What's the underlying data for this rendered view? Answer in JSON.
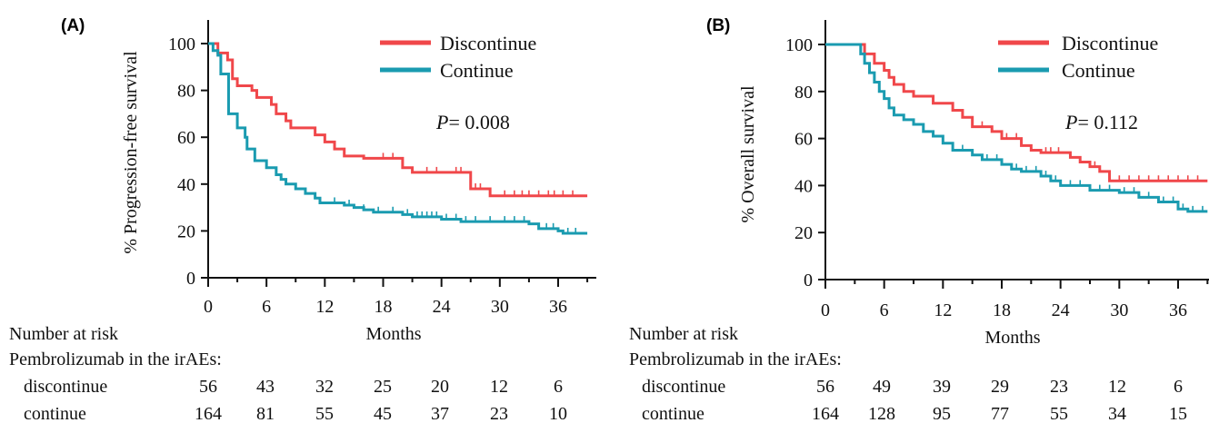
{
  "chart_data": [
    {
      "type": "line",
      "panel_label": "(A)",
      "title": "",
      "ylabel": "% Progression-free survival",
      "xlabel": "Months",
      "xlim": [
        0,
        39
      ],
      "ylim": [
        0,
        110
      ],
      "xticks": [
        "0",
        "6",
        "12",
        "18",
        "24",
        "30",
        "36"
      ],
      "yticks": [
        "0",
        "20",
        "40",
        "60",
        "80",
        "100"
      ],
      "grid": false,
      "legend_position": "top-right",
      "annotation": {
        "p_label": "P",
        "p_value": "= 0.008"
      },
      "series": [
        {
          "name": "Discontinue",
          "color": "#f0474a",
          "points": [
            [
              0,
              100
            ],
            [
              1,
              96
            ],
            [
              2,
              93
            ],
            [
              2.5,
              85
            ],
            [
              3,
              82
            ],
            [
              4.5,
              80
            ],
            [
              5,
              77
            ],
            [
              6.5,
              74
            ],
            [
              7,
              70
            ],
            [
              8,
              67
            ],
            [
              8.5,
              64
            ],
            [
              11,
              61
            ],
            [
              12,
              58
            ],
            [
              13,
              55
            ],
            [
              14,
              52
            ],
            [
              16,
              51
            ],
            [
              20,
              47
            ],
            [
              21,
              45
            ],
            [
              26,
              45
            ],
            [
              27,
              38
            ],
            [
              28.8,
              38
            ],
            [
              29,
              35
            ],
            [
              39,
              35
            ]
          ],
          "censor_x": [
            18,
            19,
            22.5,
            23.5,
            25.5,
            26,
            27.5,
            28,
            30.5,
            31.5,
            32.3,
            33,
            34,
            35,
            35.6,
            36.5,
            37.5
          ]
        },
        {
          "name": "Continue",
          "color": "#1a9bb0",
          "points": [
            [
              0,
              100
            ],
            [
              0.5,
              97
            ],
            [
              1,
              95
            ],
            [
              1.3,
              87
            ],
            [
              2,
              87
            ],
            [
              2.1,
              70
            ],
            [
              3,
              64
            ],
            [
              3.8,
              60
            ],
            [
              4,
              55
            ],
            [
              4.8,
              50
            ],
            [
              6,
              47
            ],
            [
              7,
              44
            ],
            [
              7.5,
              42
            ],
            [
              8,
              40
            ],
            [
              9,
              38
            ],
            [
              10,
              36
            ],
            [
              11,
              34
            ],
            [
              11.5,
              32
            ],
            [
              14,
              31
            ],
            [
              15,
              30
            ],
            [
              16,
              29
            ],
            [
              17,
              28
            ],
            [
              20,
              27
            ],
            [
              21,
              26
            ],
            [
              24,
              25
            ],
            [
              26,
              24
            ],
            [
              33,
              23
            ],
            [
              34,
              21
            ],
            [
              36,
              20
            ],
            [
              36.5,
              19
            ],
            [
              39,
              19
            ]
          ],
          "censor_x": [
            13,
            14.5,
            16,
            17.5,
            19,
            20.5,
            21.5,
            22,
            22.5,
            23,
            23.5,
            24.5,
            25.5,
            26.5,
            27.5,
            29,
            30.5,
            31.5,
            32.5,
            34.8,
            35.5,
            37,
            37.8
          ]
        }
      ],
      "risk_table": {
        "header": "Number at risk",
        "subheader": "Pembrolizumab in the irAEs:",
        "rows": [
          {
            "label": "discontinue",
            "values": [
              "56",
              "43",
              "32",
              "25",
              "20",
              "12",
              "6"
            ]
          },
          {
            "label": "continue",
            "values": [
              "164",
              "81",
              "55",
              "45",
              "37",
              "23",
              "10"
            ]
          }
        ]
      }
    },
    {
      "type": "line",
      "panel_label": "(B)",
      "title": "",
      "ylabel": "% Overall survival",
      "xlabel": "Months",
      "xlim": [
        0,
        39
      ],
      "ylim": [
        0,
        110
      ],
      "xticks": [
        "0",
        "6",
        "12",
        "18",
        "24",
        "30",
        "36"
      ],
      "yticks": [
        "0",
        "20",
        "40",
        "60",
        "80",
        "100"
      ],
      "grid": false,
      "legend_position": "top-right",
      "annotation": {
        "p_label": "P",
        "p_value": "= 0.112"
      },
      "series": [
        {
          "name": "Discontinue",
          "color": "#f0474a",
          "points": [
            [
              0,
              100
            ],
            [
              3.5,
              100
            ],
            [
              4,
              96
            ],
            [
              5,
              92
            ],
            [
              6,
              89
            ],
            [
              6.5,
              86
            ],
            [
              7,
              83
            ],
            [
              8,
              80
            ],
            [
              9,
              78
            ],
            [
              11,
              75
            ],
            [
              13,
              72
            ],
            [
              14,
              69
            ],
            [
              15,
              65
            ],
            [
              17,
              63
            ],
            [
              18,
              60
            ],
            [
              20,
              57
            ],
            [
              21,
              55
            ],
            [
              22,
              54
            ],
            [
              25,
              52
            ],
            [
              26,
              50
            ],
            [
              27,
              48
            ],
            [
              28,
              46
            ],
            [
              29,
              42
            ],
            [
              39,
              42
            ]
          ],
          "censor_x": [
            16,
            18.5,
            19.5,
            22.5,
            23,
            23.8,
            26,
            27.5,
            30,
            31,
            32,
            33,
            34,
            35,
            36,
            37,
            38
          ]
        },
        {
          "name": "Continue",
          "color": "#1a9bb0",
          "points": [
            [
              0,
              100
            ],
            [
              3.3,
              100
            ],
            [
              3.6,
              96
            ],
            [
              4,
              92
            ],
            [
              4.5,
              88
            ],
            [
              5,
              84
            ],
            [
              5.5,
              80
            ],
            [
              6,
              77
            ],
            [
              6.5,
              73
            ],
            [
              7,
              70
            ],
            [
              8,
              68
            ],
            [
              9,
              66
            ],
            [
              10,
              63
            ],
            [
              11,
              61
            ],
            [
              12,
              58
            ],
            [
              13,
              55
            ],
            [
              15,
              53
            ],
            [
              16,
              51
            ],
            [
              18,
              49
            ],
            [
              19,
              47
            ],
            [
              20,
              46
            ],
            [
              22,
              44
            ],
            [
              23,
              42
            ],
            [
              24,
              40
            ],
            [
              27,
              38
            ],
            [
              30,
              37
            ],
            [
              32,
              35
            ],
            [
              34,
              33
            ],
            [
              36,
              30
            ],
            [
              37,
              29
            ],
            [
              39,
              29
            ]
          ],
          "censor_x": [
            14,
            15,
            16.5,
            17.5,
            19.5,
            20.5,
            21.5,
            22.5,
            23.5,
            25,
            26,
            27,
            28,
            29,
            30.5,
            31.5,
            33,
            34.5,
            35.5,
            36.5,
            37.5,
            38.5
          ]
        }
      ],
      "risk_table": {
        "header": "Number at risk",
        "subheader": "Pembrolizumab in the irAEs:",
        "rows": [
          {
            "label": "discontinue",
            "values": [
              "56",
              "49",
              "39",
              "29",
              "23",
              "12",
              "6"
            ]
          },
          {
            "label": "continue",
            "values": [
              "164",
              "128",
              "95",
              "77",
              "55",
              "34",
              "15"
            ]
          }
        ]
      }
    }
  ]
}
